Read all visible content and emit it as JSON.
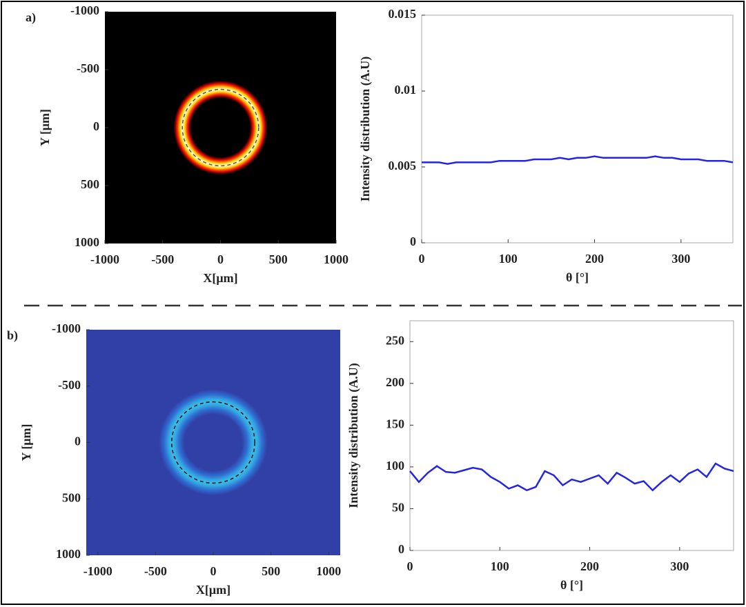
{
  "chart_data": [
    {
      "type": "heatmap",
      "panel_label": "a)",
      "colormap": "hot",
      "y_direction": "reverse",
      "xlim": [
        -1000,
        1000
      ],
      "ylim": [
        -1000,
        1000
      ],
      "xticks": [
        -1000,
        -500,
        0,
        500,
        1000
      ],
      "yticks": [
        -1000,
        -500,
        0,
        500,
        1000
      ],
      "xlabel": "X[μm]",
      "ylabel": "Y [μm]",
      "ring_radius": 330,
      "ring_width": 75
    },
    {
      "type": "line",
      "xlim": [
        0,
        360
      ],
      "ylim": [
        0,
        0.015
      ],
      "xticks": [
        0,
        100,
        200,
        300
      ],
      "yticks": [
        0,
        0.005,
        0.01,
        0.015
      ],
      "xlabel": "θ [°]",
      "ylabel": "Intensity distribution (A.U)",
      "x": [
        0,
        10,
        20,
        30,
        40,
        50,
        60,
        70,
        80,
        90,
        100,
        110,
        120,
        130,
        140,
        150,
        160,
        170,
        180,
        190,
        200,
        210,
        220,
        230,
        240,
        250,
        260,
        270,
        280,
        290,
        300,
        310,
        320,
        330,
        340,
        350,
        360
      ],
      "series": [
        {
          "color": "#2424e8",
          "values": [
            0.0053,
            0.0053,
            0.0053,
            0.0052,
            0.0053,
            0.0053,
            0.0053,
            0.0053,
            0.0053,
            0.0054,
            0.0054,
            0.0054,
            0.0054,
            0.0055,
            0.0055,
            0.0055,
            0.0056,
            0.0055,
            0.0056,
            0.0056,
            0.0057,
            0.0056,
            0.0056,
            0.0056,
            0.0056,
            0.0056,
            0.0056,
            0.0057,
            0.0056,
            0.0056,
            0.0055,
            0.0055,
            0.0055,
            0.0054,
            0.0054,
            0.0054,
            0.0053
          ]
        }
      ]
    },
    {
      "type": "heatmap",
      "panel_label": "b)",
      "colormap": "jet",
      "y_direction": "reverse",
      "xlim": [
        -1100,
        1100
      ],
      "ylim": [
        -1000,
        1000
      ],
      "xticks": [
        -1000,
        -500,
        0,
        500,
        1000
      ],
      "yticks": [
        -1000,
        -500,
        0,
        500,
        1000
      ],
      "xlabel": "X[μm]",
      "ylabel": "Y [μm]",
      "ring_radius": 360,
      "ring_width": 110
    },
    {
      "type": "line",
      "xlim": [
        0,
        360
      ],
      "ylim": [
        0,
        275
      ],
      "xticks": [
        0,
        100,
        200,
        300
      ],
      "yticks": [
        0,
        50,
        100,
        150,
        200,
        250
      ],
      "xlabel": "θ [°]",
      "ylabel": "Intensity distribution (A.U)",
      "x": [
        0,
        10,
        20,
        30,
        40,
        50,
        60,
        70,
        80,
        90,
        100,
        110,
        120,
        130,
        140,
        150,
        160,
        170,
        180,
        190,
        200,
        210,
        220,
        230,
        240,
        250,
        260,
        270,
        280,
        290,
        300,
        310,
        320,
        330,
        340,
        350,
        360
      ],
      "series": [
        {
          "color": "#2424e8",
          "values": [
            95,
            82,
            93,
            101,
            94,
            93,
            96,
            99,
            97,
            88,
            82,
            74,
            78,
            72,
            76,
            95,
            90,
            78,
            85,
            82,
            86,
            90,
            80,
            93,
            87,
            80,
            83,
            72,
            82,
            90,
            82,
            92,
            97,
            88,
            104,
            98,
            95
          ]
        }
      ]
    }
  ]
}
